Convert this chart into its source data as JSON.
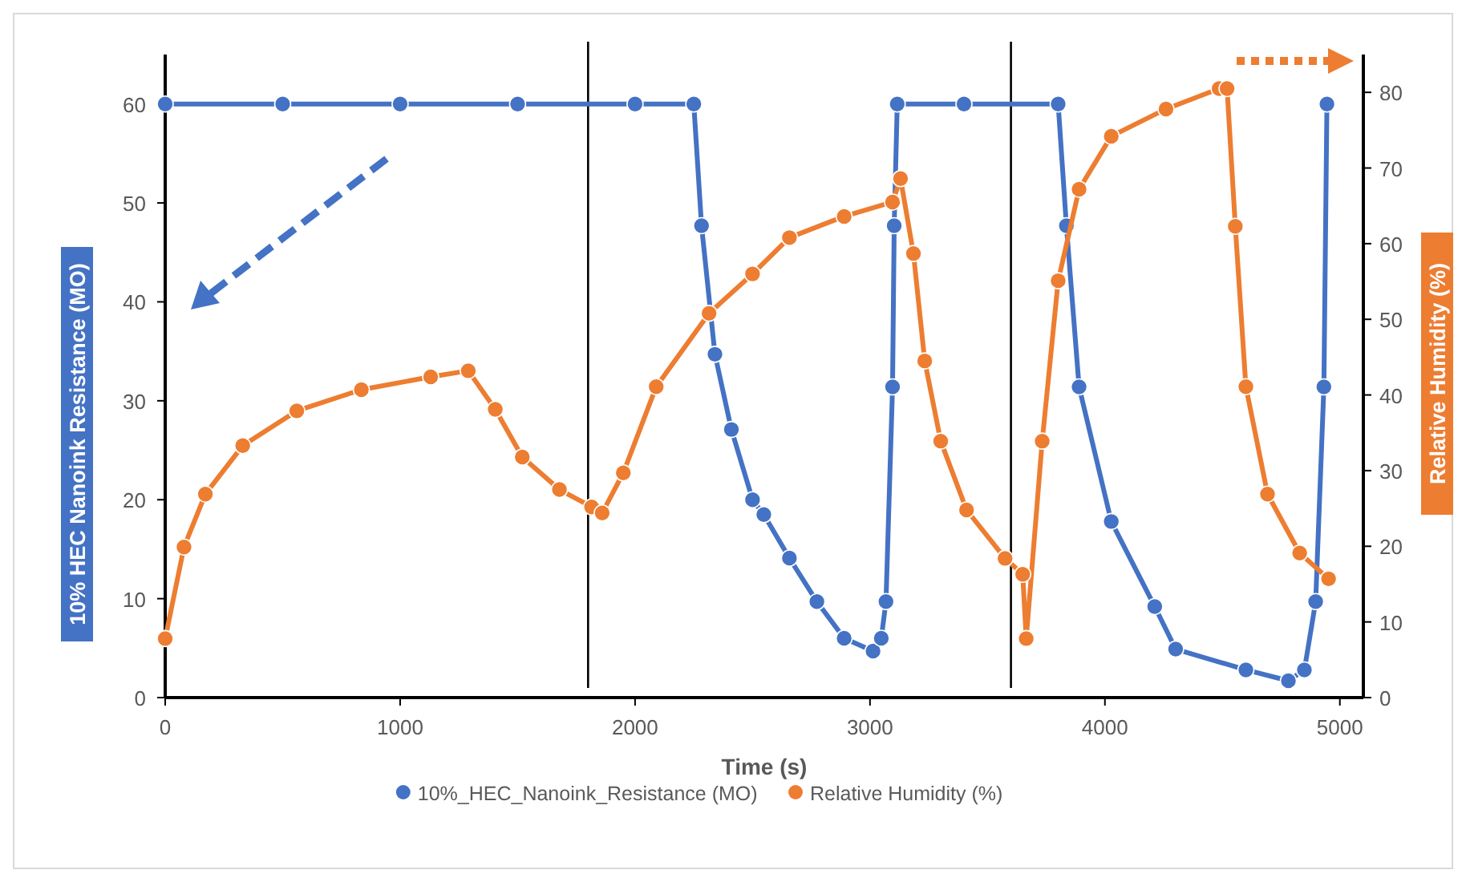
{
  "chart_data": {
    "type": "line",
    "xlabel": "Time (s)",
    "ylabel": "10% HEC Nanoink Resistance (MO)",
    "y2label": "Relative Humidity (%)",
    "xlim": [
      0,
      5100
    ],
    "xticks": [
      0,
      1000,
      2000,
      3000,
      4000,
      5000
    ],
    "ylim": [
      0,
      65
    ],
    "yticks": [
      0,
      10,
      20,
      30,
      40,
      50,
      60
    ],
    "y2lim": [
      0,
      85
    ],
    "y2ticks": [
      0,
      10,
      20,
      30,
      40,
      50,
      60,
      70,
      80
    ],
    "grid": false,
    "legend": "bottom",
    "marker": "circle",
    "line_style": "solid",
    "ref_lines": [
      {
        "axis": "x",
        "value": 1800,
        "color": "#000000"
      },
      {
        "axis": "x",
        "value": 3600,
        "color": "#000000"
      }
    ],
    "series": [
      {
        "name": "10%_HEC_Nanoink_Resistance (MO)",
        "color": "#4472c4",
        "x": [
          0,
          500,
          1000,
          1500,
          2000,
          2250,
          2283,
          2340,
          2410,
          2500,
          2548,
          2657,
          2774,
          2890,
          3013,
          3048,
          3068,
          3096,
          3103,
          3116,
          3400,
          3801,
          3836,
          3890,
          4027,
          4212,
          4301,
          4600,
          4781,
          4849,
          4897,
          4932,
          4945
        ],
        "values": [
          60,
          60,
          60,
          60,
          60,
          60,
          47.7,
          34.7,
          27.1,
          20,
          18.5,
          14.1,
          9.7,
          6,
          4.7,
          6,
          9.7,
          31.4,
          47.7,
          60,
          60,
          60,
          47.7,
          31.4,
          17.8,
          9.2,
          4.9,
          2.8,
          1.7,
          2.8,
          9.7,
          31.4,
          60
        ]
      },
      {
        "name": "Relative Humidity (%)",
        "color": "#ed7d31",
        "axis": "y2",
        "x": [
          0,
          80,
          171,
          330,
          560,
          835,
          1130,
          1290,
          1405,
          1520,
          1678,
          1815,
          1860,
          1950,
          2090,
          2315,
          2500,
          2657,
          2890,
          3096,
          3130,
          3185,
          3233,
          3301,
          3411,
          3575,
          3650,
          3665,
          3733,
          3801,
          3890,
          4027,
          4260,
          4486,
          4520,
          4555,
          4600,
          4692,
          4829,
          4952
        ],
        "values": [
          7.8,
          19.9,
          26.9,
          33.3,
          37.9,
          40.7,
          42.4,
          43.2,
          38.1,
          31.8,
          27.5,
          25.2,
          24.4,
          29.7,
          41.1,
          50.8,
          56,
          60.8,
          63.6,
          65.5,
          68.6,
          58.7,
          44.5,
          33.9,
          24.8,
          18.4,
          16.3,
          7.8,
          33.9,
          55.1,
          67.2,
          74.2,
          77.8,
          80.5,
          80.5,
          62.3,
          41.1,
          26.9,
          19.1,
          15.7
        ]
      }
    ]
  }
}
